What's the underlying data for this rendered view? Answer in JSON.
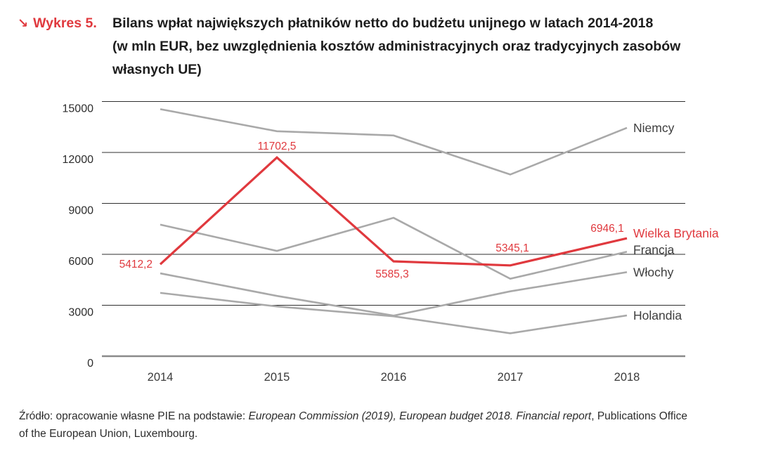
{
  "header": {
    "marker": "↘",
    "figure_label": "Wykres 5.",
    "title_lines": [
      "Bilans wpłat największych płatników netto do budżetu unijnego w latach 2014-2018",
      "(w mln EUR, bez uwzględnienia kosztów administracyjnych oraz tradycyjnych zasobów",
      "własnych UE)"
    ]
  },
  "chart_data": {
    "type": "line",
    "title": "Bilans wpłat największych płatników netto do budżetu unijnego w latach 2014-2018 (w mln EUR, bez uwzględnienia kosztów administracyjnych oraz tradycyjnych zasobów własnych UE)",
    "x": [
      2014,
      2015,
      2016,
      2017,
      2018
    ],
    "x_tick_labels": [
      "2014",
      "2015",
      "2016",
      "2017",
      "2018"
    ],
    "y_ticks": [
      0,
      3000,
      6000,
      9000,
      12000,
      15000
    ],
    "y_tick_labels": [
      "0",
      "3000",
      "6000",
      "9000",
      "12000",
      "15000"
    ],
    "ylim": [
      0,
      15900
    ],
    "xlabel": "",
    "ylabel": "",
    "grid": "horizontal",
    "legend_position": "right-end-labels",
    "colors": {
      "highlight": "#e0393e",
      "neutral": "#a9a9a9",
      "gridline": "#2f2f2f",
      "zero_axis": "#8a8a8a"
    },
    "series": [
      {
        "name": "Niemcy",
        "color": "#a9a9a9",
        "highlight": false,
        "values": [
          14550,
          13250,
          13000,
          10700,
          13450
        ]
      },
      {
        "name": "Francja",
        "color": "#a9a9a9",
        "highlight": false,
        "values": [
          7750,
          6200,
          8150,
          4560,
          6150
        ]
      },
      {
        "name": "Włochy",
        "color": "#a9a9a9",
        "highlight": false,
        "values": [
          4880,
          3550,
          2390,
          3820,
          4950
        ]
      },
      {
        "name": "Holandia",
        "color": "#a9a9a9",
        "highlight": false,
        "values": [
          3730,
          2930,
          2350,
          1350,
          2400
        ]
      },
      {
        "name": "Wielka Brytania",
        "color": "#e0393e",
        "highlight": true,
        "values": [
          5412.2,
          11702.5,
          5585.3,
          5345.1,
          6946.1
        ],
        "point_labels": [
          "5412,2",
          "11702,5",
          "5585,3",
          "5345,1",
          "6946,1"
        ]
      }
    ]
  },
  "footer": {
    "source_prefix": "Źródło: opracowanie własne PIE na podstawie: ",
    "source_italic": "European Commission (2019), European budget 2018. Financial report",
    "source_suffix": ", Publications Office",
    "source_line2": "of the European Union, Luxembourg."
  }
}
